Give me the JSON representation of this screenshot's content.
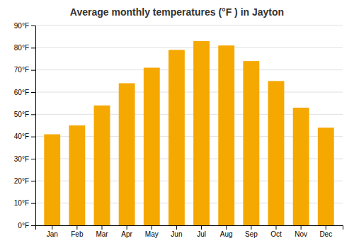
{
  "chart_data": {
    "type": "bar",
    "title": "Average monthly temperatures (°F ) in Jayton",
    "categories": [
      "Jan",
      "Feb",
      "Mar",
      "Apr",
      "May",
      "Jun",
      "Jul",
      "Aug",
      "Sep",
      "Oct",
      "Nov",
      "Dec"
    ],
    "values": [
      41,
      45,
      54,
      64,
      71,
      79,
      83,
      81,
      74,
      65,
      53,
      44
    ],
    "color": "#F5A800",
    "ylim": [
      0,
      90
    ],
    "yticks": [
      {
        "value": 0,
        "label": "0°F"
      },
      {
        "value": 10,
        "label": "10°F"
      },
      {
        "value": 20,
        "label": "20°F"
      },
      {
        "value": 30,
        "label": "30°F"
      },
      {
        "value": 40,
        "label": "40°F"
      },
      {
        "value": 50,
        "label": "50°F"
      },
      {
        "value": 60,
        "label": "60°F"
      },
      {
        "value": 70,
        "label": "70°F"
      },
      {
        "value": 80,
        "label": "80°F"
      },
      {
        "value": 90,
        "label": "90°F"
      }
    ],
    "grid": true
  }
}
